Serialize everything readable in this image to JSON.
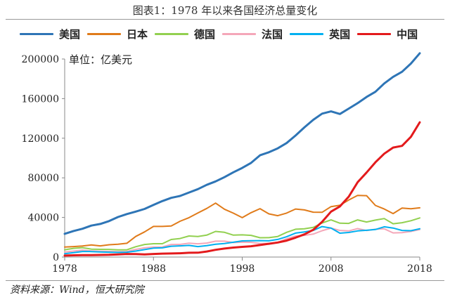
{
  "chart_data": {
    "type": "line",
    "title": "图表1：1978 年以来各国经济总量变化",
    "unit_label": "单位：亿美元",
    "source": "资料来源：Wind，恒大研究院",
    "xlim": [
      1978,
      2018
    ],
    "ylim": [
      0,
      200000
    ],
    "x_ticks": [
      1978,
      1988,
      1998,
      2008,
      2018
    ],
    "y_ticks": [
      0,
      40000,
      80000,
      120000,
      160000,
      200000
    ],
    "x": [
      1978,
      1979,
      1980,
      1981,
      1982,
      1983,
      1984,
      1985,
      1986,
      1987,
      1988,
      1989,
      1990,
      1991,
      1992,
      1993,
      1994,
      1995,
      1996,
      1997,
      1998,
      1999,
      2000,
      2001,
      2002,
      2003,
      2004,
      2005,
      2006,
      2007,
      2008,
      2009,
      2010,
      2011,
      2012,
      2013,
      2014,
      2015,
      2016,
      2017,
      2018
    ],
    "series": [
      {
        "name": "美国",
        "color": "#2e75b6",
        "width": 3,
        "values": [
          23500,
          26300,
          28600,
          31800,
          33400,
          36300,
          40400,
          43400,
          45900,
          48600,
          52600,
          56500,
          59800,
          61700,
          65200,
          68600,
          72900,
          76400,
          80700,
          85600,
          90000,
          95100,
          102800,
          105800,
          109800,
          115100,
          122700,
          130900,
          138600,
          144800,
          147100,
          144500,
          149900,
          155400,
          161600,
          166900,
          175300,
          182000,
          187100,
          195400,
          205800
        ]
      },
      {
        "name": "日本",
        "color": "#e07b1a",
        "width": 2,
        "values": [
          10100,
          10600,
          11100,
          12200,
          11300,
          12400,
          12900,
          13900,
          20800,
          25400,
          30900,
          30900,
          31400,
          36200,
          39800,
          44500,
          49100,
          54500,
          48300,
          44300,
          39800,
          44800,
          48900,
          43600,
          41800,
          44400,
          48500,
          47600,
          45300,
          45200,
          50900,
          52300,
          57600,
          62300,
          62000,
          52100,
          48500,
          43900,
          49500,
          48700,
          49700
        ]
      },
      {
        "name": "德国",
        "color": "#92d050",
        "width": 2,
        "values": [
          7400,
          8800,
          9500,
          8000,
          7800,
          7700,
          7300,
          7300,
          10400,
          12700,
          13500,
          13500,
          17700,
          18700,
          21300,
          20700,
          22100,
          25900,
          25000,
          22100,
          22400,
          21900,
          19500,
          19600,
          20800,
          25000,
          28100,
          28600,
          29900,
          34400,
          37500,
          34200,
          34000,
          37500,
          35400,
          37300,
          38900,
          33600,
          34700,
          36700,
          39500
        ]
      },
      {
        "name": "法国",
        "color": "#f4a7b9",
        "width": 2,
        "values": [
          5000,
          6000,
          7000,
          6200,
          5900,
          5700,
          5400,
          5600,
          7700,
          9300,
          10100,
          10200,
          12700,
          12800,
          14000,
          13400,
          14100,
          16000,
          16000,
          14600,
          15100,
          14900,
          13700,
          13800,
          15000,
          18400,
          21200,
          21900,
          23200,
          26600,
          29200,
          26900,
          26400,
          28700,
          26800,
          28100,
          28500,
          24400,
          24700,
          25900,
          27800
        ]
      },
      {
        "name": "英国",
        "color": "#00b0f0",
        "width": 2,
        "values": [
          3400,
          4400,
          5600,
          5500,
          5200,
          4900,
          4700,
          4900,
          6000,
          7500,
          9000,
          9300,
          10900,
          11300,
          11800,
          10600,
          11500,
          12900,
          13600,
          15000,
          16300,
          16500,
          16600,
          16400,
          17800,
          20500,
          24200,
          25400,
          26900,
          30800,
          29300,
          24100,
          24800,
          26400,
          27000,
          27800,
          30600,
          29300,
          26900,
          26600,
          28600
        ]
      },
      {
        "name": "中国",
        "color": "#e31a1c",
        "width": 3,
        "values": [
          1500,
          1800,
          1900,
          1900,
          2100,
          2300,
          2600,
          3100,
          3000,
          2700,
          3100,
          3500,
          3600,
          3800,
          4300,
          4400,
          5600,
          7300,
          8600,
          9600,
          10300,
          10900,
          12100,
          13400,
          14700,
          16600,
          19600,
          22900,
          27500,
          35500,
          45900,
          51100,
          61000,
          75500,
          85300,
          95700,
          104400,
          110600,
          112300,
          121400,
          136100
        ]
      }
    ]
  }
}
